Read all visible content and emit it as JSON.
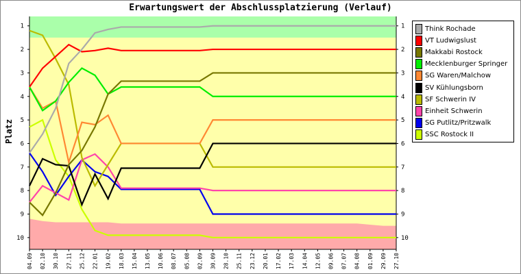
{
  "chart_data": {
    "type": "line",
    "title": "Erwartungswert der Abschlussplatzierung (Verlauf)",
    "ylabel": "Platz",
    "xlabel": "",
    "x": [
      "04.09",
      "02.10",
      "30.10",
      "27.11",
      "25.12",
      "22.01",
      "19.02",
      "18.03",
      "15.04",
      "13.05",
      "10.06",
      "08.07",
      "05.08",
      "02.09",
      "30.09",
      "28.10",
      "25.11",
      "23.12",
      "20.01",
      "17.02",
      "17.03",
      "14.04",
      "12.05",
      "09.06",
      "07.07",
      "04.08",
      "01.09",
      "29.09",
      "27.10"
    ],
    "ylim": [
      10.5,
      0.6
    ],
    "yticks": [
      1,
      2,
      3,
      4,
      5,
      6,
      7,
      8,
      9,
      10
    ],
    "grid": false,
    "legend_position": "right",
    "bands": [
      {
        "name": "top",
        "color": "#aaffaa",
        "bottom": [
          1.5,
          1.5,
          1.5,
          1.5,
          1.5,
          1.5,
          1.5,
          1.5,
          1.5,
          1.5,
          1.5,
          1.5,
          1.5,
          1.5,
          1.5,
          1.5,
          1.5,
          1.5,
          1.5,
          1.5,
          1.5,
          1.5,
          1.5,
          1.5,
          1.5,
          1.5,
          1.5,
          1.5,
          1.5
        ]
      },
      {
        "name": "bottom",
        "color": "#ffaaaa",
        "top": [
          9.2,
          9.3,
          9.35,
          9.35,
          9.35,
          9.35,
          9.35,
          9.4,
          9.4,
          9.4,
          9.4,
          9.4,
          9.4,
          9.4,
          9.4,
          9.4,
          9.4,
          9.4,
          9.4,
          9.4,
          9.4,
          9.4,
          9.4,
          9.4,
          9.4,
          9.4,
          9.45,
          9.5,
          9.5
        ]
      }
    ],
    "series": [
      {
        "name": "Think Rochade",
        "color": "#aaaaaa",
        "values": [
          6.4,
          5.6,
          4.5,
          2.6,
          2.0,
          1.3,
          1.15,
          1.05,
          1.05,
          1.05,
          1.05,
          1.05,
          1.05,
          1.05,
          1.0,
          1.0,
          1.0,
          1.0,
          1.0,
          1.0,
          1.0,
          1.0,
          1.0,
          1.0,
          1.0,
          1.0,
          1.0,
          1.0,
          1.0
        ]
      },
      {
        "name": "VT Ludwigslust",
        "color": "#ff0000",
        "values": [
          3.6,
          2.8,
          2.3,
          1.8,
          2.1,
          2.05,
          1.95,
          2.05,
          2.05,
          2.05,
          2.05,
          2.05,
          2.05,
          2.05,
          2.0,
          2.0,
          2.0,
          2.0,
          2.0,
          2.0,
          2.0,
          2.0,
          2.0,
          2.0,
          2.0,
          2.0,
          2.0,
          2.0,
          2.0
        ]
      },
      {
        "name": "Makkabi Rostock",
        "color": "#777700",
        "values": [
          8.5,
          9.05,
          8.1,
          6.9,
          6.3,
          5.3,
          3.9,
          3.35,
          3.35,
          3.35,
          3.35,
          3.35,
          3.35,
          3.35,
          3.0,
          3.0,
          3.0,
          3.0,
          3.0,
          3.0,
          3.0,
          3.0,
          3.0,
          3.0,
          3.0,
          3.0,
          3.0,
          3.0,
          3.0
        ]
      },
      {
        "name": "Mecklenburger Springer",
        "color": "#00ee00",
        "values": [
          3.6,
          4.6,
          4.2,
          3.4,
          2.8,
          3.1,
          3.9,
          3.6,
          3.6,
          3.6,
          3.6,
          3.6,
          3.6,
          3.6,
          4.0,
          4.0,
          4.0,
          4.0,
          4.0,
          4.0,
          4.0,
          4.0,
          4.0,
          4.0,
          4.0,
          4.0,
          4.0,
          4.0,
          4.0
        ]
      },
      {
        "name": "SG Waren/Malchow",
        "color": "#ff8833",
        "values": [
          3.6,
          4.5,
          4.2,
          6.8,
          5.1,
          5.2,
          4.8,
          6.0,
          6.0,
          6.0,
          6.0,
          6.0,
          6.0,
          6.0,
          5.0,
          5.0,
          5.0,
          5.0,
          5.0,
          5.0,
          5.0,
          5.0,
          5.0,
          5.0,
          5.0,
          5.0,
          5.0,
          5.0,
          5.0
        ]
      },
      {
        "name": "SV Kühlungsborn",
        "color": "#000000",
        "values": [
          7.8,
          6.65,
          6.9,
          6.95,
          8.6,
          7.3,
          8.35,
          7.05,
          7.05,
          7.05,
          7.05,
          7.05,
          7.05,
          7.05,
          6.0,
          6.0,
          6.0,
          6.0,
          6.0,
          6.0,
          6.0,
          6.0,
          6.0,
          6.0,
          6.0,
          6.0,
          6.0,
          6.0,
          6.0
        ]
      },
      {
        "name": "SF Schwerin IV",
        "color": "#bbbb00",
        "values": [
          1.2,
          1.4,
          2.4,
          3.5,
          6.6,
          7.8,
          6.9,
          6.0,
          6.0,
          6.0,
          6.0,
          6.0,
          6.0,
          6.0,
          7.0,
          7.0,
          7.0,
          7.0,
          7.0,
          7.0,
          7.0,
          7.0,
          7.0,
          7.0,
          7.0,
          7.0,
          7.0,
          7.0,
          7.0
        ]
      },
      {
        "name": "Einheit Schwerin",
        "color": "#ff44aa",
        "values": [
          8.5,
          7.8,
          8.1,
          8.4,
          6.7,
          6.45,
          7.0,
          7.9,
          7.9,
          7.9,
          7.9,
          7.9,
          7.9,
          7.9,
          8.0,
          8.0,
          8.0,
          8.0,
          8.0,
          8.0,
          8.0,
          8.0,
          8.0,
          8.0,
          8.0,
          8.0,
          8.0,
          8.0,
          8.0
        ]
      },
      {
        "name": "SG Putlitz/Pritzwalk",
        "color": "#0000ee",
        "values": [
          6.4,
          7.2,
          8.2,
          7.4,
          6.7,
          7.2,
          7.4,
          7.95,
          7.95,
          7.95,
          7.95,
          7.95,
          7.95,
          7.95,
          9.0,
          9.0,
          9.0,
          9.0,
          9.0,
          9.0,
          9.0,
          9.0,
          9.0,
          9.0,
          9.0,
          9.0,
          9.0,
          9.0,
          9.0
        ]
      },
      {
        "name": "SSC Rostock II",
        "color": "#ccff00",
        "values": [
          5.3,
          5.0,
          6.7,
          7.4,
          8.8,
          9.7,
          9.9,
          9.9,
          9.9,
          9.9,
          9.9,
          9.9,
          9.9,
          9.9,
          10.0,
          10.0,
          10.0,
          10.0,
          10.0,
          10.0,
          10.0,
          10.0,
          10.0,
          10.0,
          10.0,
          10.0,
          10.0,
          10.0,
          10.0
        ]
      }
    ]
  }
}
